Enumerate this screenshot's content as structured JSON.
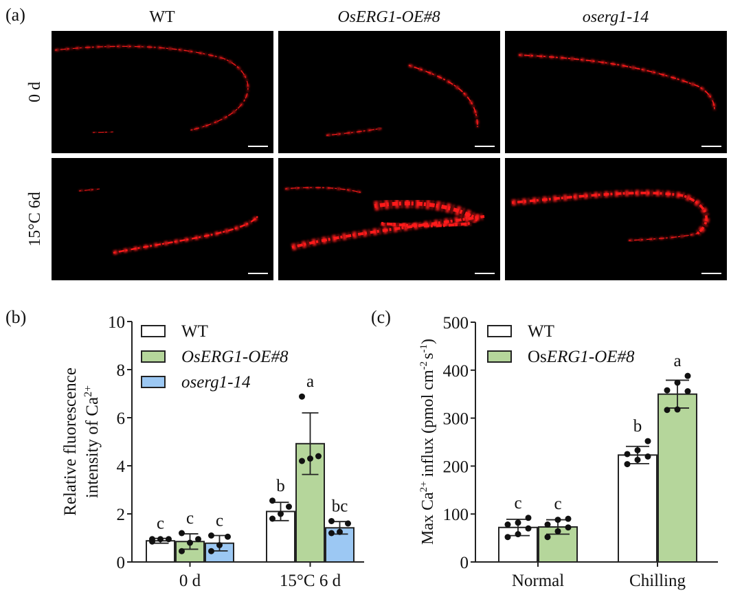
{
  "panel_a": {
    "label": "(a)",
    "columns": [
      "WT",
      "OsERG1-OE#8",
      "oserg1-14"
    ],
    "rows": [
      "0 d",
      "15°C 6d"
    ]
  },
  "colors": {
    "wt": "#ffffff",
    "oe": "#b5d69b",
    "mut": "#9cc8f3",
    "signal": "#ff1a1a"
  },
  "chart_data": [
    {
      "panel_label": "(b)",
      "type": "bar",
      "categories": [
        "0 d",
        "15°C 6 d"
      ],
      "ylabel_line1": "Relative fluorescence",
      "ylabel_line2": "intensity of Ca",
      "ylabel_sup": "2+",
      "ylim": [
        0,
        10
      ],
      "yticks": [
        "0",
        "2",
        "4",
        "6",
        "8",
        "10"
      ],
      "legend_position": "top-left",
      "series": [
        {
          "name": "WT",
          "italic": false,
          "values": [
            0.88,
            2.1
          ],
          "errors": [
            0.1,
            0.38
          ],
          "letters": [
            "c",
            "b"
          ],
          "points": [
            [
              0.85,
              0.95,
              0.95,
              0.95
            ],
            [
              1.8,
              2.0,
              2.3,
              2.55
            ]
          ]
        },
        {
          "name": "OsERG1-OE#8",
          "italic": true,
          "values": [
            0.85,
            4.92
          ],
          "errors": [
            0.32,
            1.28
          ],
          "letters": [
            "c",
            "a"
          ],
          "points": [
            [
              0.45,
              0.8,
              0.95,
              1.2
            ],
            [
              4.2,
              4.3,
              4.4,
              6.88
            ]
          ]
        },
        {
          "name": "oserg1-14",
          "italic": true,
          "values": [
            0.78,
            1.42
          ],
          "errors": [
            0.32,
            0.26
          ],
          "letters": [
            "c",
            "bc"
          ],
          "points": [
            [
              0.45,
              0.7,
              1.05,
              1.1
            ],
            [
              1.2,
              1.25,
              1.6,
              1.7
            ]
          ]
        }
      ]
    },
    {
      "panel_label": "(c)",
      "type": "bar",
      "categories": [
        "Normal",
        "Chilling"
      ],
      "ylabel_main": "Max Ca",
      "ylabel_sup1": "2+",
      "ylabel_mid": " influx (pmol cm",
      "ylabel_sup2": "-2",
      "ylabel_mid2": "s",
      "ylabel_sup3": "-1",
      "ylabel_end": ")",
      "ylim": [
        0,
        500
      ],
      "yticks": [
        "0",
        "100",
        "200",
        "300",
        "400",
        "500"
      ],
      "legend_position": "top-left",
      "series": [
        {
          "name": "WT",
          "name_prefix": "",
          "name_italic": "",
          "values": [
            72,
            223
          ],
          "errors": [
            17,
            18
          ],
          "letters": [
            "c",
            "b"
          ],
          "points": [
            [
              52,
              58,
              70,
              78,
              82,
              92
            ],
            [
              204,
              213,
              220,
              225,
              233,
              252
            ]
          ]
        },
        {
          "name": "OsERG1-OE#8",
          "name_prefix": "Os",
          "name_italic": "ERG1-OE#8",
          "values": [
            73,
            350
          ],
          "errors": [
            15,
            29
          ],
          "letters": [
            "c",
            "a"
          ],
          "points": [
            [
              52,
              64,
              72,
              78,
              88,
              90
            ],
            [
              317,
              318,
              356,
              358,
              374,
              388
            ]
          ]
        }
      ]
    }
  ]
}
